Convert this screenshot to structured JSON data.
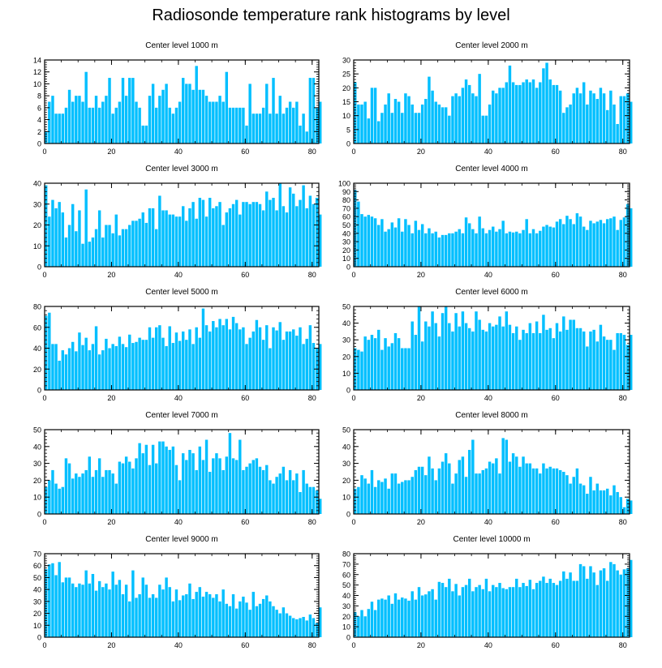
{
  "title": "Radiosonde temperature rank histograms by level",
  "style": {
    "bar_color": "#00bfff",
    "axis_color": "#000000"
  },
  "chart_data": [
    {
      "type": "bar",
      "title": "Center level 1000 m",
      "xlabel": "",
      "ylabel": "",
      "xlim": [
        0,
        82
      ],
      "ylim": [
        0,
        14
      ],
      "yticks": [
        0,
        2,
        4,
        6,
        8,
        10,
        12,
        14
      ],
      "xticks": [
        0,
        20,
        40,
        60,
        80
      ],
      "values": [
        2,
        7,
        8,
        5,
        5,
        5,
        6,
        9,
        7,
        8,
        8,
        7,
        12,
        6,
        6,
        8,
        6,
        7,
        8,
        11,
        5,
        6,
        7,
        11,
        8,
        11,
        11,
        7,
        6,
        3,
        3,
        8,
        10,
        6,
        8,
        9,
        10,
        6,
        5,
        6,
        7,
        11,
        10,
        10,
        9,
        13,
        9,
        9,
        8,
        7,
        7,
        7,
        8,
        7,
        12,
        6,
        6,
        6,
        6,
        6,
        3,
        10,
        5,
        5,
        5,
        6,
        10,
        5,
        11,
        5,
        8,
        5,
        6,
        7,
        6,
        7,
        3,
        5,
        2,
        11,
        11,
        6,
        7
      ]
    },
    {
      "type": "bar",
      "title": "Center level 2000 m",
      "xlabel": "",
      "ylabel": "",
      "xlim": [
        0,
        82
      ],
      "ylim": [
        0,
        30
      ],
      "yticks": [
        0,
        5,
        10,
        15,
        20,
        25,
        30
      ],
      "xticks": [
        0,
        20,
        40,
        60,
        80
      ],
      "values": [
        22,
        14,
        14,
        15,
        9,
        20,
        20,
        8,
        11,
        14,
        18,
        11,
        16,
        15,
        11,
        18,
        17,
        14,
        11,
        11,
        14,
        16,
        24,
        19,
        15,
        14,
        13,
        13,
        10,
        17,
        18,
        17,
        20,
        23,
        21,
        18,
        17,
        25,
        10,
        10,
        14,
        19,
        18,
        20,
        20,
        22,
        28,
        22,
        21,
        21,
        22,
        23,
        22,
        23,
        20,
        22,
        27,
        29,
        23,
        21,
        21,
        19,
        11,
        13,
        14,
        18,
        20,
        18,
        22,
        14,
        19,
        18,
        16,
        20,
        18,
        12,
        19,
        14,
        7,
        17,
        17,
        18,
        15
      ]
    },
    {
      "type": "bar",
      "title": "Center level 3000 m",
      "xlabel": "",
      "ylabel": "",
      "xlim": [
        0,
        82
      ],
      "ylim": [
        0,
        40
      ],
      "yticks": [
        0,
        10,
        20,
        30,
        40
      ],
      "xticks": [
        0,
        20,
        40,
        60,
        80
      ],
      "values": [
        39,
        24,
        32,
        28,
        31,
        26,
        14,
        20,
        30,
        17,
        27,
        11,
        37,
        12,
        14,
        18,
        27,
        14,
        20,
        20,
        16,
        25,
        15,
        18,
        18,
        20,
        22,
        22,
        23,
        26,
        21,
        28,
        28,
        18,
        34,
        27,
        27,
        25,
        25,
        24,
        24,
        29,
        22,
        28,
        31,
        23,
        33,
        32,
        24,
        33,
        28,
        29,
        31,
        20,
        26,
        28,
        30,
        32,
        25,
        31,
        31,
        30,
        31,
        31,
        30,
        27,
        36,
        32,
        33,
        27,
        40,
        29,
        26,
        38,
        35,
        29,
        32,
        39,
        28,
        34,
        30,
        33,
        25
      ]
    },
    {
      "type": "bar",
      "title": "Center level 4000 m",
      "xlabel": "",
      "ylabel": "",
      "xlim": [
        0,
        82
      ],
      "ylim": [
        0,
        100
      ],
      "yticks": [
        0,
        10,
        20,
        30,
        40,
        50,
        60,
        70,
        80,
        90,
        100
      ],
      "xticks": [
        0,
        20,
        40,
        60,
        80
      ],
      "values": [
        92,
        78,
        63,
        60,
        62,
        60,
        58,
        50,
        57,
        42,
        45,
        53,
        47,
        58,
        42,
        57,
        50,
        40,
        55,
        44,
        51,
        40,
        46,
        40,
        42,
        35,
        38,
        38,
        40,
        40,
        42,
        45,
        40,
        59,
        52,
        45,
        40,
        60,
        46,
        40,
        44,
        48,
        42,
        45,
        55,
        40,
        42,
        41,
        42,
        40,
        44,
        57,
        40,
        45,
        40,
        43,
        48,
        50,
        48,
        47,
        54,
        57,
        51,
        61,
        57,
        51,
        64,
        60,
        48,
        44,
        55,
        52,
        54,
        56,
        52,
        57,
        58,
        60,
        44,
        56,
        59,
        75,
        70
      ]
    },
    {
      "type": "bar",
      "title": "Center level 5000 m",
      "xlabel": "",
      "ylabel": "",
      "xlim": [
        0,
        82
      ],
      "ylim": [
        0,
        80
      ],
      "yticks": [
        0,
        20,
        40,
        60,
        80
      ],
      "xticks": [
        0,
        20,
        40,
        60,
        80
      ],
      "values": [
        71,
        74,
        44,
        44,
        28,
        38,
        34,
        40,
        46,
        37,
        55,
        43,
        50,
        38,
        44,
        61,
        34,
        38,
        49,
        40,
        44,
        42,
        51,
        44,
        41,
        53,
        45,
        46,
        50,
        48,
        48,
        60,
        50,
        60,
        62,
        50,
        42,
        61,
        45,
        55,
        47,
        56,
        48,
        58,
        44,
        60,
        50,
        78,
        62,
        56,
        66,
        60,
        68,
        62,
        68,
        58,
        70,
        64,
        58,
        60,
        44,
        50,
        56,
        67,
        60,
        48,
        62,
        40,
        60,
        57,
        65,
        48,
        56,
        56,
        58,
        52,
        60,
        44,
        49,
        62,
        45,
        40,
        44
      ]
    },
    {
      "type": "bar",
      "title": "Center level 6000 m",
      "xlabel": "",
      "ylabel": "",
      "xlim": [
        0,
        82
      ],
      "ylim": [
        0,
        50
      ],
      "yticks": [
        0,
        10,
        20,
        30,
        40,
        50
      ],
      "xticks": [
        0,
        20,
        40,
        60,
        80
      ],
      "values": [
        25,
        24,
        23,
        32,
        30,
        33,
        31,
        36,
        24,
        31,
        26,
        28,
        34,
        31,
        25,
        25,
        25,
        41,
        33,
        50,
        29,
        41,
        38,
        47,
        40,
        32,
        46,
        50,
        40,
        35,
        46,
        38,
        47,
        40,
        37,
        35,
        47,
        42,
        36,
        35,
        40,
        38,
        39,
        44,
        38,
        47,
        39,
        34,
        38,
        30,
        36,
        34,
        40,
        34,
        41,
        34,
        45,
        36,
        37,
        31,
        40,
        35,
        44,
        36,
        42,
        42,
        37,
        37,
        35,
        26,
        35,
        36,
        29,
        39,
        32,
        30,
        30,
        24,
        34,
        34,
        33,
        27,
        33
      ]
    },
    {
      "type": "bar",
      "title": "Center level 7000 m",
      "xlabel": "",
      "ylabel": "",
      "xlim": [
        0,
        82
      ],
      "ylim": [
        0,
        50
      ],
      "yticks": [
        0,
        10,
        20,
        30,
        40,
        50
      ],
      "xticks": [
        0,
        20,
        40,
        60,
        80
      ],
      "values": [
        16,
        20,
        26,
        18,
        15,
        16,
        33,
        30,
        21,
        24,
        22,
        24,
        26,
        34,
        22,
        26,
        33,
        22,
        26,
        26,
        24,
        18,
        31,
        30,
        34,
        31,
        27,
        33,
        42,
        36,
        41,
        29,
        41,
        30,
        43,
        43,
        40,
        38,
        40,
        29,
        20,
        36,
        32,
        38,
        36,
        26,
        40,
        32,
        44,
        25,
        33,
        36,
        33,
        26,
        34,
        48,
        33,
        32,
        44,
        26,
        28,
        30,
        32,
        33,
        28,
        26,
        29,
        20,
        18,
        22,
        24,
        28,
        20,
        26,
        20,
        24,
        13,
        26,
        18,
        16,
        16,
        14,
        9
      ]
    },
    {
      "type": "bar",
      "title": "Center level 8000 m",
      "xlabel": "",
      "ylabel": "",
      "xlim": [
        0,
        82
      ],
      "ylim": [
        0,
        50
      ],
      "yticks": [
        0,
        10,
        20,
        30,
        40,
        50
      ],
      "xticks": [
        0,
        20,
        40,
        60,
        80
      ],
      "values": [
        15,
        16,
        23,
        21,
        18,
        26,
        16,
        20,
        19,
        21,
        15,
        24,
        24,
        18,
        19,
        20,
        20,
        22,
        26,
        28,
        28,
        23,
        34,
        27,
        20,
        27,
        31,
        36,
        30,
        18,
        24,
        32,
        34,
        22,
        38,
        44,
        24,
        24,
        26,
        27,
        31,
        30,
        33,
        24,
        45,
        44,
        31,
        36,
        34,
        28,
        34,
        30,
        30,
        27,
        27,
        24,
        30,
        27,
        28,
        27,
        27,
        26,
        25,
        23,
        18,
        22,
        27,
        18,
        17,
        12,
        22,
        14,
        18,
        14,
        14,
        15,
        11,
        17,
        13,
        10,
        4,
        9,
        8
      ]
    },
    {
      "type": "bar",
      "title": "Center level 9000 m",
      "xlabel": "",
      "ylabel": "",
      "xlim": [
        0,
        82
      ],
      "ylim": [
        0,
        70
      ],
      "yticks": [
        0,
        10,
        20,
        30,
        40,
        50,
        60,
        70
      ],
      "xticks": [
        0,
        20,
        40,
        60,
        80
      ],
      "values": [
        57,
        61,
        62,
        52,
        63,
        46,
        50,
        50,
        45,
        42,
        45,
        44,
        56,
        45,
        53,
        39,
        47,
        42,
        45,
        40,
        55,
        44,
        48,
        36,
        44,
        30,
        56,
        33,
        36,
        50,
        44,
        33,
        36,
        33,
        44,
        40,
        50,
        42,
        30,
        40,
        31,
        35,
        36,
        45,
        32,
        38,
        42,
        34,
        38,
        36,
        33,
        36,
        30,
        40,
        28,
        26,
        36,
        24,
        30,
        34,
        29,
        23,
        38,
        26,
        28,
        32,
        35,
        30,
        26,
        23,
        20,
        25,
        20,
        18,
        16,
        15,
        16,
        17,
        14,
        19,
        16,
        12,
        25
      ]
    },
    {
      "type": "bar",
      "title": "Center level 10000 m",
      "xlabel": "",
      "ylabel": "",
      "xlim": [
        0,
        82
      ],
      "ylim": [
        0,
        80
      ],
      "yticks": [
        0,
        10,
        20,
        30,
        40,
        50,
        60,
        70,
        80
      ],
      "xticks": [
        0,
        20,
        40,
        60,
        80
      ],
      "values": [
        24,
        20,
        26,
        20,
        27,
        34,
        26,
        36,
        37,
        36,
        40,
        32,
        42,
        36,
        38,
        37,
        35,
        44,
        36,
        48,
        40,
        41,
        44,
        46,
        36,
        53,
        52,
        48,
        56,
        44,
        51,
        40,
        48,
        50,
        56,
        44,
        48,
        50,
        46,
        56,
        44,
        50,
        48,
        52,
        47,
        46,
        48,
        48,
        56,
        48,
        52,
        49,
        55,
        46,
        52,
        54,
        58,
        52,
        56,
        52,
        50,
        54,
        63,
        56,
        62,
        54,
        54,
        70,
        68,
        56,
        68,
        62,
        50,
        64,
        66,
        54,
        72,
        70,
        64,
        60,
        65,
        66,
        74
      ]
    }
  ]
}
